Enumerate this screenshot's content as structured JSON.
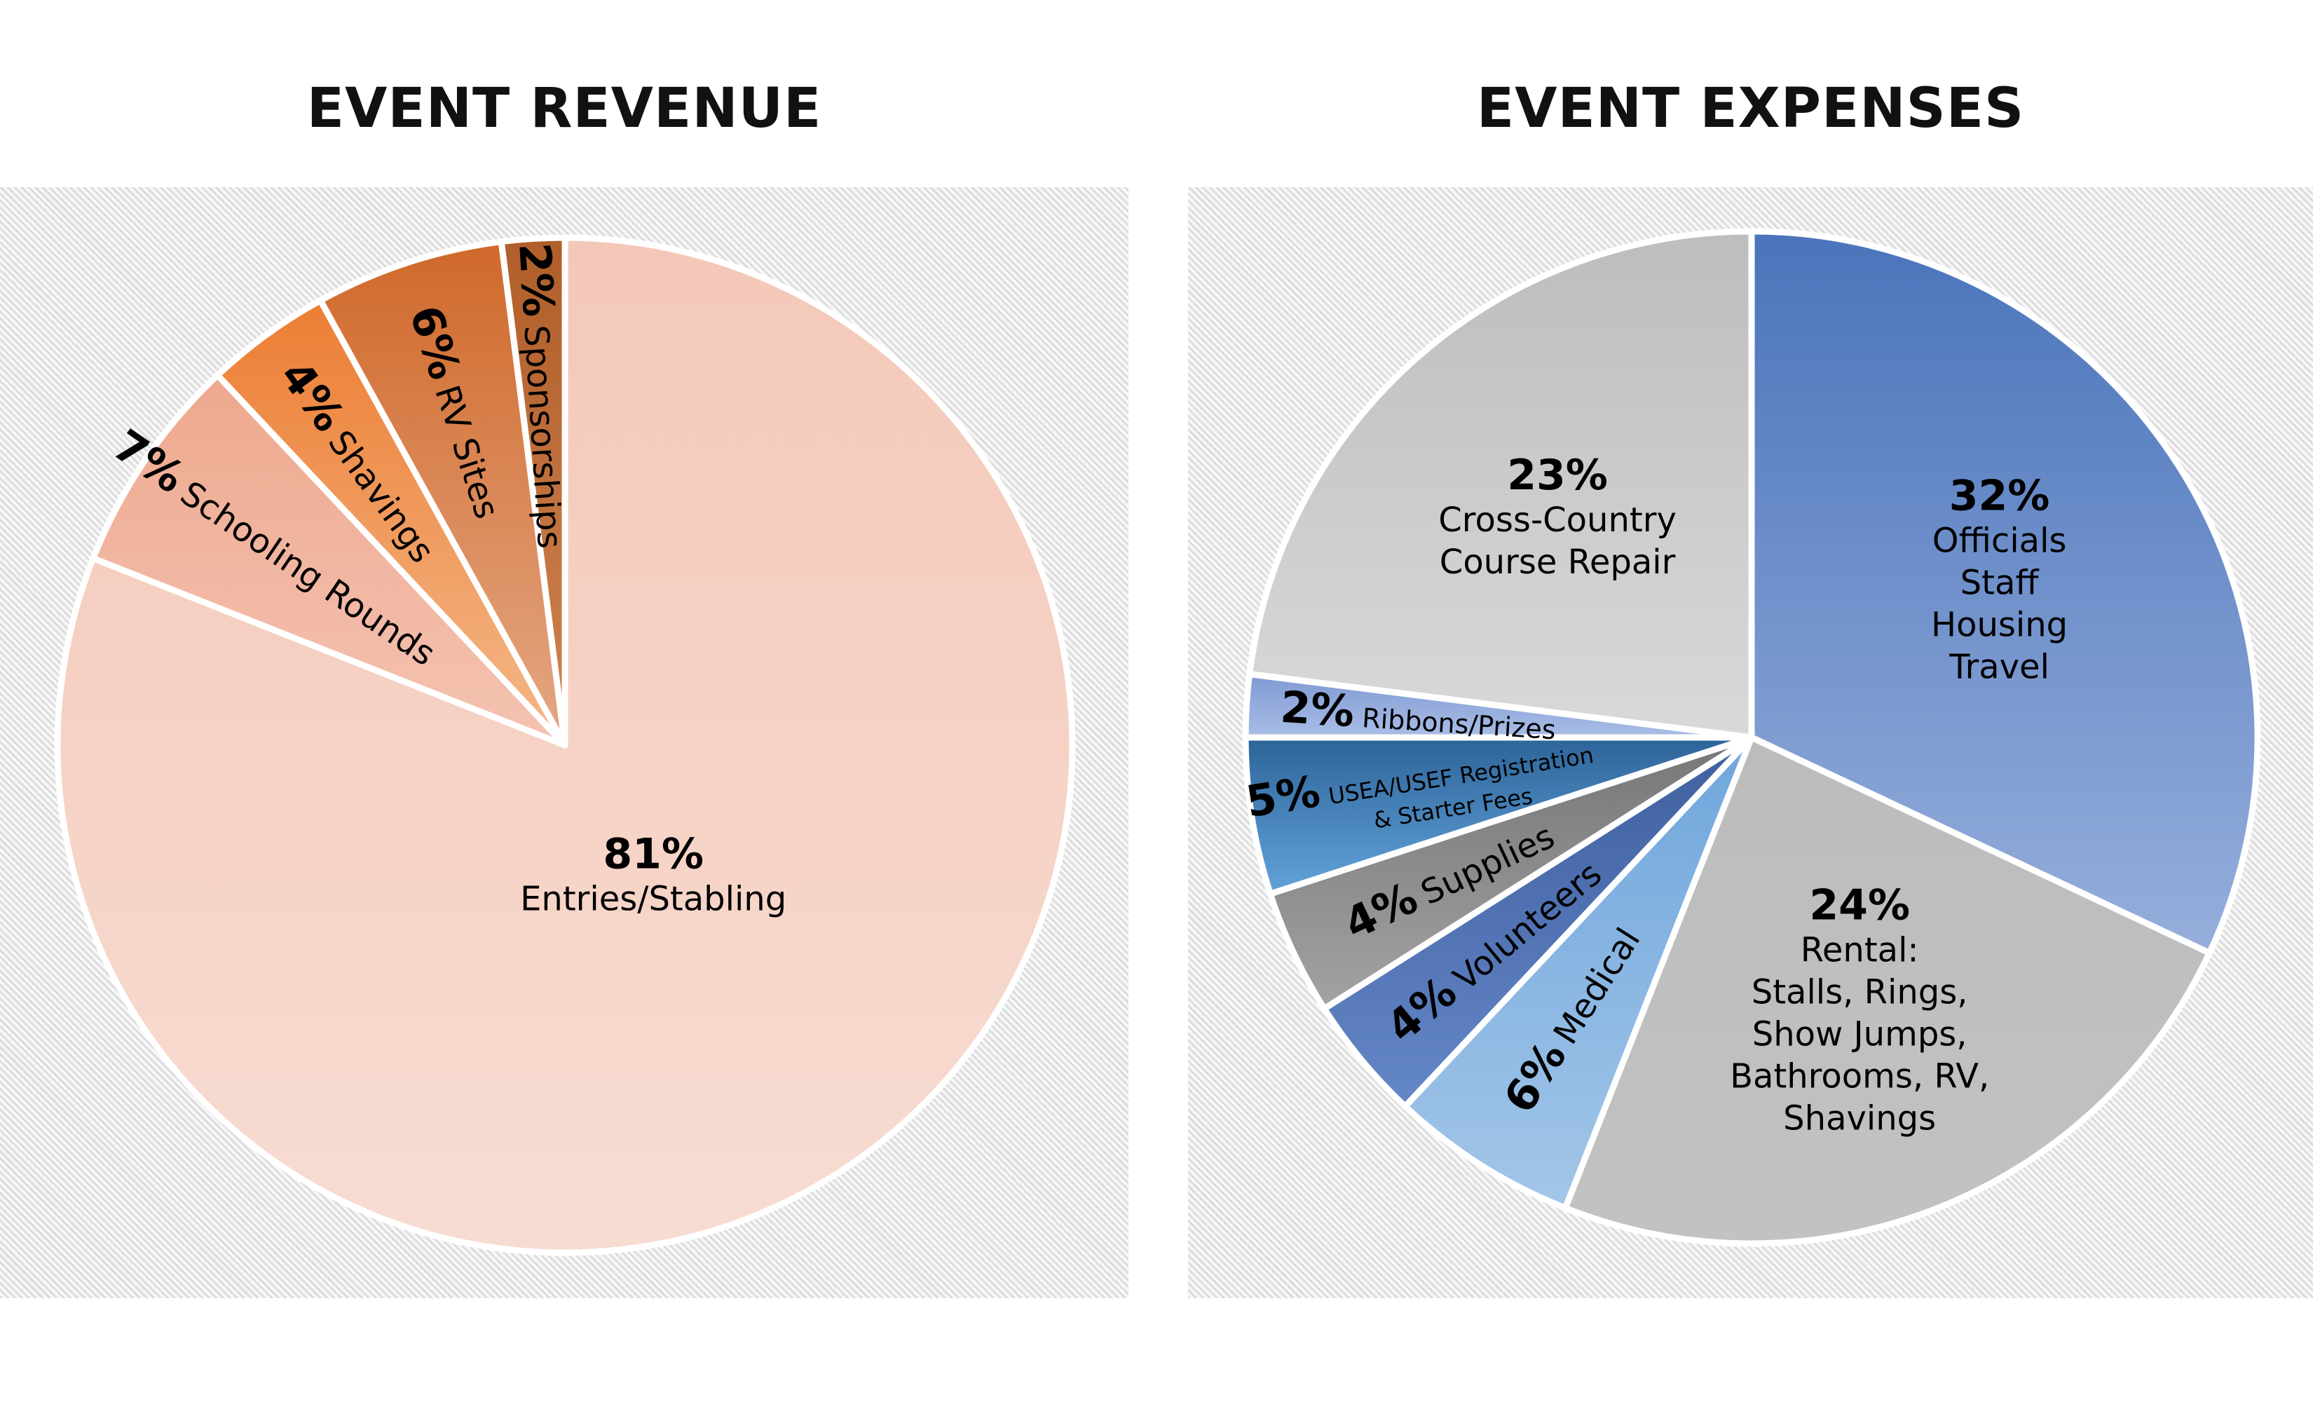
{
  "chart_data": [
    {
      "type": "pie",
      "title": "EVENT REVENUE",
      "start": "top, clockwise",
      "slices": [
        {
          "label": [
            "Entries/Stabling"
          ],
          "value": 81,
          "pct": "81%",
          "colors": [
            "#f4c8b8",
            "#f7dcd2"
          ],
          "style": "center"
        },
        {
          "label": [
            "Schooling Rounds"
          ],
          "value": 7,
          "pct": "7%",
          "colors": [
            "#eea88e",
            "#f4c3b2"
          ],
          "style": "radial"
        },
        {
          "label": [
            "Shavings"
          ],
          "value": 4,
          "pct": "4%",
          "colors": [
            "#ec7d33",
            "#f4b888"
          ],
          "style": "radial"
        },
        {
          "label": [
            "RV Sites"
          ],
          "value": 6,
          "pct": "6%",
          "colors": [
            "#d0692a",
            "#e4a784"
          ],
          "style": "radial"
        },
        {
          "label": [
            "Sponsorships"
          ],
          "value": 2,
          "pct": "2%",
          "colors": [
            "#b05e2a",
            "#d0834f"
          ],
          "style": "radial"
        }
      ]
    },
    {
      "type": "pie",
      "title": "EVENT EXPENSES",
      "start": "top, clockwise",
      "slices": [
        {
          "label": [
            "Officials",
            "Staff",
            "Housing",
            "Travel"
          ],
          "value": 32,
          "pct": "32%",
          "colors": [
            "#4a74bb",
            "#96aedb"
          ],
          "style": "center"
        },
        {
          "label": [
            "Rental:",
            "Stalls, Rings,",
            "Show Jumps,",
            "Bathrooms, RV,",
            "Shavings"
          ],
          "value": 24,
          "pct": "24%",
          "colors": [
            "#bcbcbc",
            "#c2c2c2"
          ],
          "style": "center"
        },
        {
          "label": [
            "Medical"
          ],
          "value": 6,
          "pct": "6%",
          "colors": [
            "#6fa6dc",
            "#a3c6e8"
          ],
          "style": "radial"
        },
        {
          "label": [
            "Volunteers"
          ],
          "value": 4,
          "pct": "4%",
          "colors": [
            "#3f5f9e",
            "#6487c8"
          ],
          "style": "radial"
        },
        {
          "label": [
            "Supplies"
          ],
          "value": 4,
          "pct": "4%",
          "colors": [
            "#767676",
            "#a3a3a3"
          ],
          "style": "radial"
        },
        {
          "label": [
            "USEA/USEF Registration",
            "& Starter Fees"
          ],
          "value": 5,
          "pct": "5%",
          "colors": [
            "#2d6499",
            "#62a3da"
          ],
          "style": "radial-small"
        },
        {
          "label": [
            "Ribbons/Prizes"
          ],
          "value": 2,
          "pct": "2%",
          "colors": [
            "#7f9ad3",
            "#a9bde6"
          ],
          "style": "radial-small"
        },
        {
          "label": [
            "Cross-Country",
            "Course Repair"
          ],
          "value": 23,
          "pct": "23%",
          "colors": [
            "#bdbdbd",
            "#d9d9d9"
          ],
          "style": "center"
        }
      ]
    }
  ]
}
